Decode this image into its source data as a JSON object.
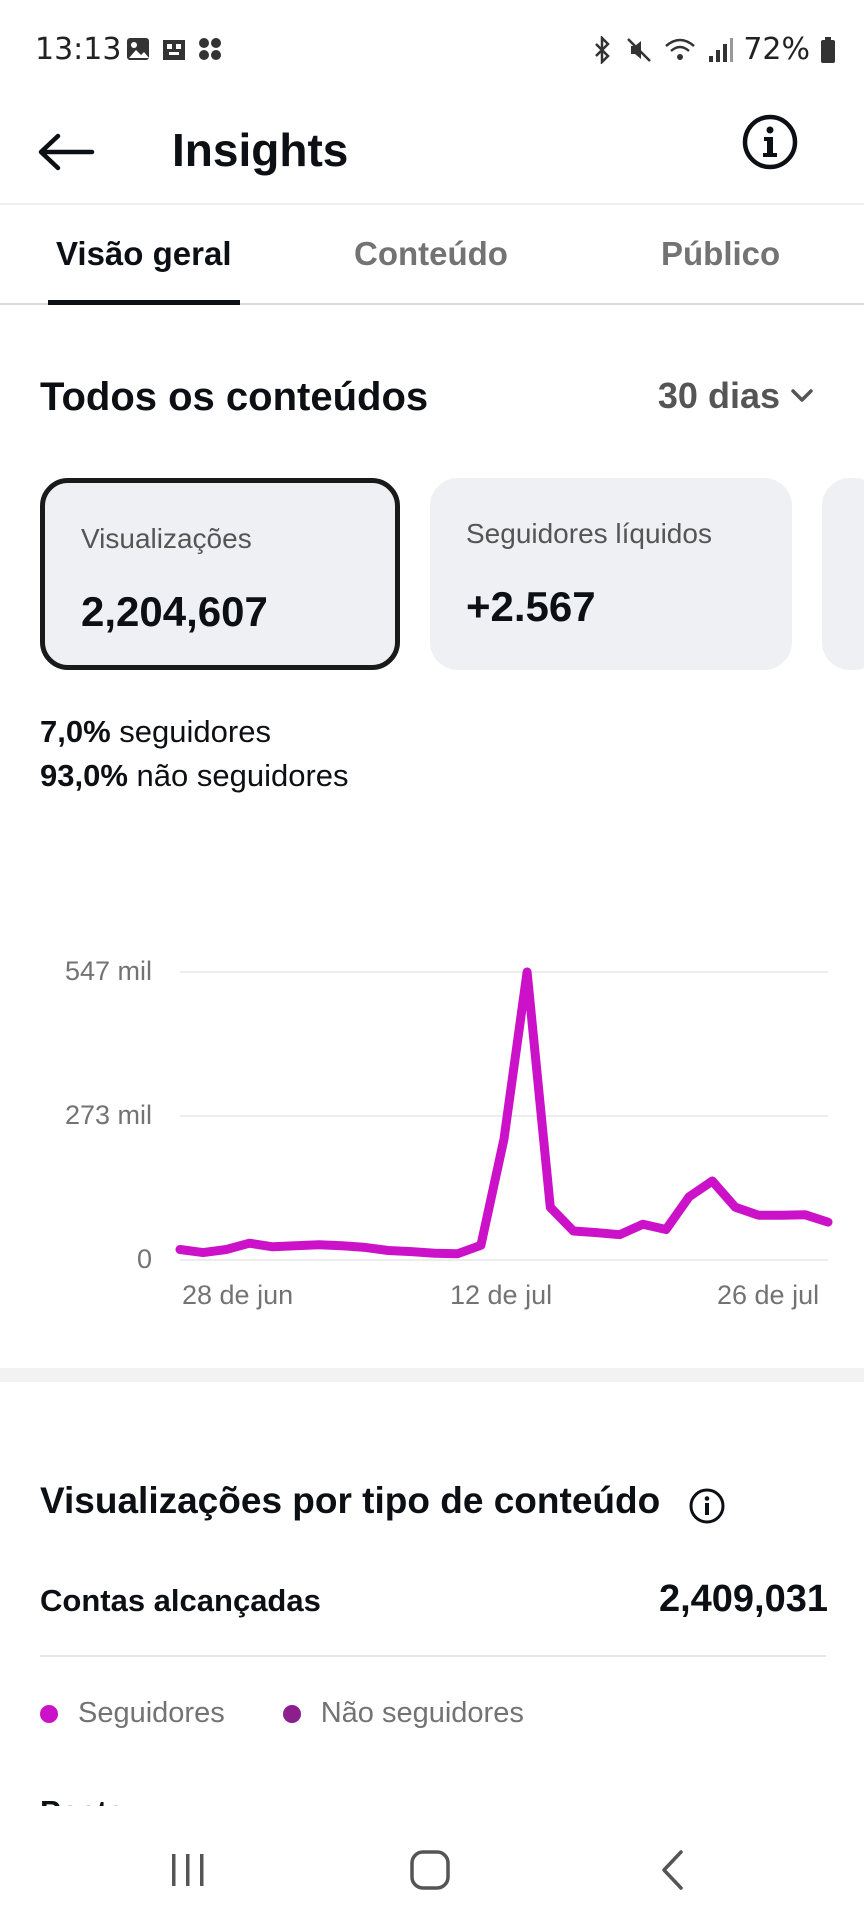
{
  "status_bar": {
    "time": "13:13",
    "battery": "72%"
  },
  "header": {
    "title": "Insights"
  },
  "tabs": [
    {
      "label": "Visão geral",
      "active": true
    },
    {
      "label": "Conteúdo",
      "active": false
    },
    {
      "label": "Público",
      "active": false
    }
  ],
  "section": {
    "title": "Todos os conteúdos",
    "period": "30 dias"
  },
  "cards": [
    {
      "label": "Visualizações",
      "value": "2,204,607",
      "selected": true
    },
    {
      "label": "Seguidores líquidos",
      "value": "+2.567",
      "selected": false
    }
  ],
  "split": {
    "followers_pct": "7,0%",
    "followers_label": "seguidores",
    "nonfollowers_pct": "93,0%",
    "nonfollowers_label": "não seguidores"
  },
  "chart_data": {
    "type": "line",
    "y_ticks": [
      "547 mil",
      "273 mil",
      "0"
    ],
    "x_ticks": [
      "28 de jun",
      "12 de jul",
      "26 de jul"
    ],
    "ylim": [
      0,
      547
    ],
    "color": "#cc12c9",
    "series": [
      {
        "values": [
          20,
          14,
          20,
          32,
          25,
          27,
          29,
          27,
          24,
          18,
          16,
          13,
          12,
          28,
          230,
          547,
          100,
          55,
          52,
          48,
          68,
          58,
          120,
          150,
          100,
          85,
          85,
          86,
          72
        ]
      }
    ]
  },
  "views": {
    "title": "Visualizações por tipo de conteúdo",
    "reached_label": "Contas alcançadas",
    "reached_value": "2,409,031",
    "legend": [
      {
        "label": "Seguidores",
        "color": "#cc12c9"
      },
      {
        "label": "Não seguidores",
        "color": "#8b1f8b"
      }
    ],
    "cut_label": "Posts"
  }
}
